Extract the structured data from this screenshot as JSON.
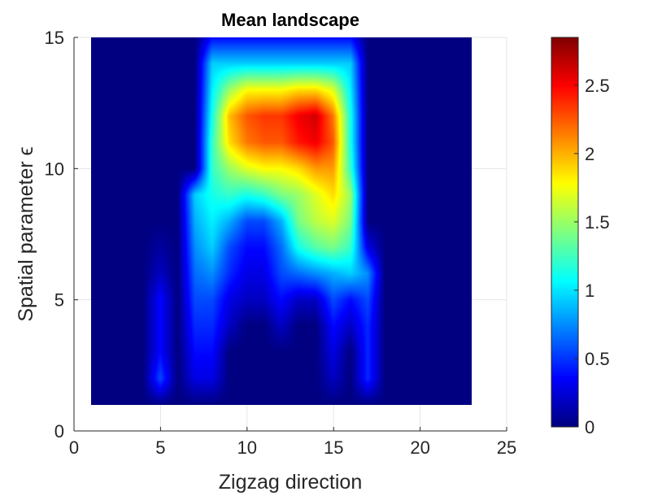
{
  "chart_data": {
    "type": "heatmap",
    "title": "Mean landscape",
    "xlabel": "Zigzag direction",
    "ylabel": "Spatial parameter ϵ",
    "xlim": [
      0,
      25
    ],
    "ylim": [
      0,
      15
    ],
    "x_ticks": [
      "0",
      "5",
      "10",
      "15",
      "20",
      "25"
    ],
    "y_ticks": [
      "0",
      "5",
      "10",
      "15"
    ],
    "grid": true,
    "colormap": "jet",
    "colorbar": {
      "min": 0,
      "max": 2.85,
      "ticks": [
        "0",
        "0.5",
        "1",
        "1.5",
        "2",
        "2.5"
      ]
    },
    "x": [
      1,
      2,
      3,
      4,
      5,
      6,
      7,
      8,
      9,
      10,
      11,
      12,
      13,
      14,
      15,
      16,
      17,
      18,
      19,
      20,
      21,
      22,
      23
    ],
    "y": [
      1,
      2,
      3,
      4,
      5,
      6,
      7,
      8,
      9,
      10,
      11,
      12,
      13,
      14,
      15
    ],
    "z": [
      [
        0,
        0,
        0,
        0,
        0,
        0,
        0,
        0,
        0,
        0,
        0,
        0,
        0,
        0,
        0,
        0,
        0,
        0,
        0,
        0,
        0,
        0,
        0
      ],
      [
        0,
        0,
        0,
        0,
        0.6,
        0,
        0.3,
        0.3,
        0,
        0,
        0,
        0,
        0,
        0,
        0.2,
        0,
        0.5,
        0,
        0,
        0,
        0,
        0,
        0
      ],
      [
        0,
        0,
        0,
        0,
        0.4,
        0,
        0.4,
        0.4,
        0,
        0,
        0,
        0,
        0,
        0,
        0.3,
        0,
        0.5,
        0,
        0,
        0,
        0,
        0,
        0
      ],
      [
        0,
        0,
        0,
        0,
        0.4,
        0,
        0.5,
        0.5,
        0.2,
        0,
        0,
        0.2,
        0,
        0,
        0.4,
        0.2,
        0.5,
        0,
        0,
        0,
        0,
        0,
        0
      ],
      [
        0,
        0,
        0,
        0,
        0.4,
        0,
        0.6,
        0.6,
        0.3,
        0.2,
        0.2,
        0.4,
        0.2,
        0.2,
        0.6,
        0.4,
        0.6,
        0,
        0,
        0,
        0,
        0,
        0
      ],
      [
        0,
        0,
        0,
        0,
        0.2,
        0,
        0.7,
        0.8,
        0.5,
        0.3,
        0.3,
        0.6,
        0.7,
        0.8,
        0.9,
        1.0,
        0.8,
        0,
        0,
        0,
        0,
        0,
        0
      ],
      [
        0,
        0,
        0,
        0,
        0.1,
        0,
        0.8,
        1.0,
        0.6,
        0.4,
        0.4,
        0.7,
        1.2,
        1.4,
        1.5,
        1.3,
        0.3,
        0,
        0,
        0,
        0,
        0,
        0
      ],
      [
        0,
        0,
        0,
        0,
        0,
        0,
        0.9,
        1.1,
        0.9,
        0.6,
        0.6,
        0.9,
        1.5,
        1.7,
        1.8,
        1.5,
        0,
        0,
        0,
        0,
        0,
        0,
        0
      ],
      [
        0,
        0,
        0,
        0,
        0,
        0,
        1.0,
        1.2,
        1.3,
        1.2,
        1.3,
        1.5,
        1.6,
        1.8,
        2.0,
        1.6,
        0,
        0,
        0,
        0,
        0,
        0,
        0
      ],
      [
        0,
        0,
        0,
        0,
        0,
        0,
        0,
        1.3,
        1.6,
        1.8,
        1.9,
        1.9,
        2.0,
        2.2,
        2.2,
        1.3,
        0,
        0,
        0,
        0,
        0,
        0,
        0
      ],
      [
        0,
        0,
        0,
        0,
        0,
        0,
        0,
        1.3,
        2.0,
        2.3,
        2.4,
        2.4,
        2.6,
        2.7,
        2.4,
        1.2,
        0,
        0,
        0,
        0,
        0,
        0,
        0
      ],
      [
        0,
        0,
        0,
        0,
        0,
        0,
        0,
        1.2,
        2.1,
        2.4,
        2.5,
        2.5,
        2.7,
        2.8,
        2.3,
        1.2,
        0,
        0,
        0,
        0,
        0,
        0,
        0
      ],
      [
        0,
        0,
        0,
        0,
        0,
        0,
        0,
        1.1,
        1.6,
        1.9,
        1.9,
        1.9,
        2.0,
        2.0,
        1.8,
        1.1,
        0,
        0,
        0,
        0,
        0,
        0,
        0
      ],
      [
        0,
        0,
        0,
        0,
        0,
        0,
        0,
        1.0,
        1.0,
        1.0,
        1.0,
        1.0,
        1.0,
        1.0,
        1.0,
        1.0,
        0,
        0,
        0,
        0,
        0,
        0,
        0
      ],
      [
        0,
        0,
        0,
        0,
        0,
        0,
        0,
        0.4,
        0.4,
        0.4,
        0.4,
        0.4,
        0.4,
        0.4,
        0.4,
        0.4,
        0,
        0,
        0,
        0,
        0,
        0,
        0
      ]
    ]
  }
}
